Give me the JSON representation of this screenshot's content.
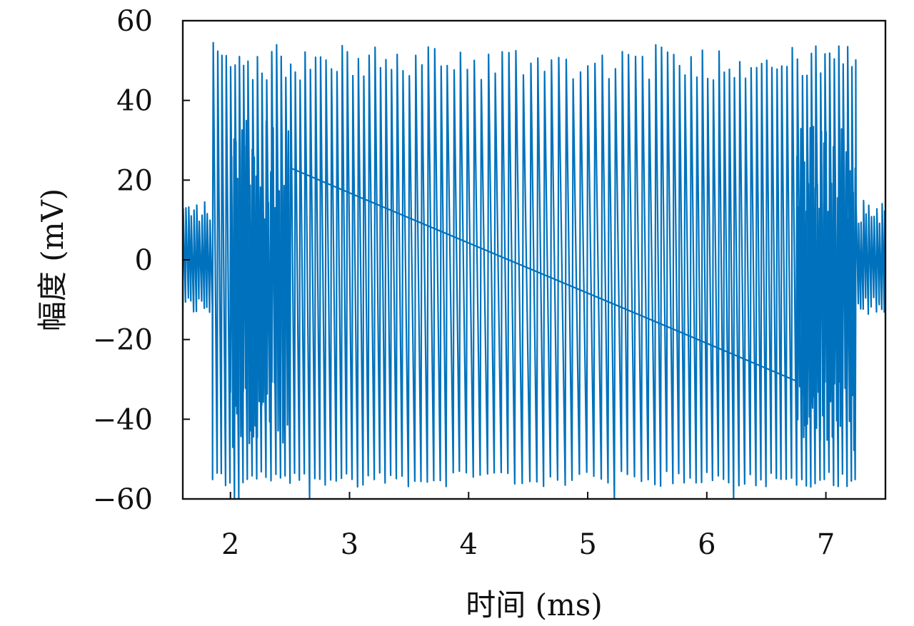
{
  "chart_data": {
    "type": "line",
    "xlabel": "时间 (ms)",
    "ylabel": "幅度 (mV)",
    "xlim": [
      1.6,
      7.5
    ],
    "ylim": [
      -60,
      60
    ],
    "x_ticks": [
      "2",
      "3",
      "4",
      "5",
      "6",
      "7"
    ],
    "y_ticks": [
      "60",
      "40",
      "20",
      "0",
      "−20",
      "−40",
      "−60"
    ],
    "grid": false,
    "legend": "none",
    "series": [
      {
        "color": "#0072BD",
        "segments": [
          {
            "name_hint": "pre-burst low amplitude",
            "x_start": 1.6,
            "x_end": 1.85,
            "period_ms": 0.022,
            "min_mV": [
              -14,
              -9
            ],
            "max_mV": [
              9,
              15
            ]
          },
          {
            "name_hint": "main burst",
            "x_start": 1.85,
            "x_end": 7.25,
            "period_ms": [
              0.035,
              0.062,
              0.035
            ],
            "min_mV": [
              -57,
              -53
            ],
            "max_mV": [
              45,
              54
            ],
            "peak_first_mV": 54.5,
            "trough_min_mV": -60
          },
          {
            "name_hint": "post-burst low amplitude",
            "x_start": 7.25,
            "x_end": 7.5,
            "period_ms": 0.022,
            "min_mV": [
              -14,
              -9
            ],
            "max_mV": [
              9,
              15
            ]
          }
        ],
        "dense_mixing": [
          [
            2.0,
            2.5
          ],
          [
            6.75,
            7.25
          ]
        ]
      }
    ]
  }
}
